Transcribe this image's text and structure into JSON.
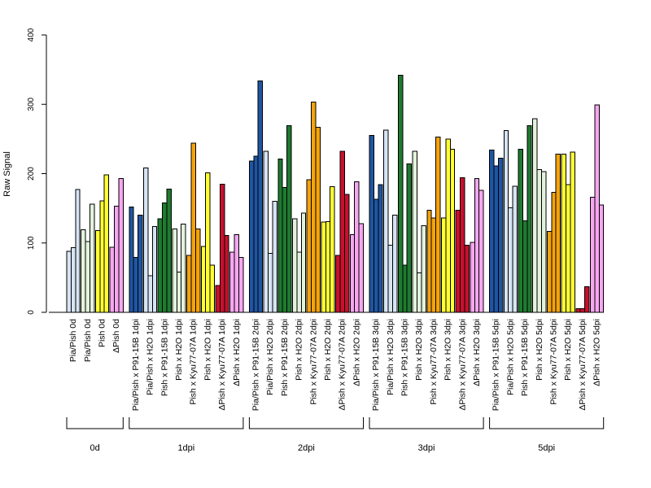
{
  "chart_data": {
    "type": "bar",
    "title": "",
    "xlabel": "",
    "ylabel": "Raw Signal",
    "ylim": [
      0,
      400
    ],
    "yticks": [
      0,
      100,
      200,
      300,
      400
    ],
    "grid": false,
    "legend": "none",
    "colors": {
      "Pia/Pish": "#d6e4f3",
      "Pia/Pish x P91-15B": "#1f56a3",
      "Pia/Pish x H2O": "#d6e4f3",
      "Pish": "#e3f2dc",
      "Pish x P91-15B": "#1e7b2f",
      "Pish x H2O": "#e3f2dc",
      "Pish-yellow": "#ffff33",
      "Pish x Kyu77-07A": "#f5a30c",
      "ΔPish": "#f7a6f0",
      "ΔPish x Kyu77-07A": "#c8102e",
      "ΔPish x H2O": "#f7a6f0"
    },
    "groups": [
      {
        "label": "0d",
        "categories": [
          {
            "label": "Pia/Pish 0d",
            "color": "#d6e4f3",
            "values": [
              88,
              93,
              177
            ]
          },
          {
            "label": "Pia/Pish 0d",
            "color": "#e3f2dc",
            "values": [
              119,
              102,
              156
            ]
          },
          {
            "label": "Pish 0d",
            "color": "#ffff33",
            "values": [
              118,
              161,
              198
            ]
          },
          {
            "label": "ΔPish 0d",
            "color": "#f7a6f0",
            "values": [
              94,
              153,
              193
            ]
          }
        ]
      },
      {
        "label": "1dpi",
        "categories": [
          {
            "label": "Pia/Pish x P91-15B 1dpi",
            "color": "#1f56a3",
            "values": [
              152,
              79,
              140
            ]
          },
          {
            "label": "Pia/Pish x H2O 1dpi",
            "color": "#d6e4f3",
            "values": [
              208,
              53,
              124
            ]
          },
          {
            "label": "Pish x P91-15B 1dpi",
            "color": "#1e7b2f",
            "values": [
              135,
              158,
              178
            ]
          },
          {
            "label": "Pish x H2O 1dpi",
            "color": "#e3f2dc",
            "values": [
              120,
              58,
              127
            ]
          },
          {
            "label": "Pish x Kyu77-07A 1dpi",
            "color": "#f5a30c",
            "values": [
              82,
              244,
              120
            ]
          },
          {
            "label": "Pish x H2O 1dpi",
            "color": "#ffff33",
            "values": [
              95,
              201,
              68
            ]
          },
          {
            "label": "ΔPish x Kyu77-07A 1dpi",
            "color": "#c8102e",
            "values": [
              39,
              185,
              111
            ]
          },
          {
            "label": "ΔPish x H2O 1dpi",
            "color": "#f7a6f0",
            "values": [
              87,
              112,
              79
            ]
          }
        ]
      },
      {
        "label": "2dpi",
        "categories": [
          {
            "label": "Pia/Pish x P91-15B 2dpi",
            "color": "#1f56a3",
            "values": [
              218,
              225,
              334
            ]
          },
          {
            "label": "Pia/Pish x H2O 2dpi",
            "color": "#d6e4f3",
            "values": [
              232,
              85,
              160
            ]
          },
          {
            "label": "Pish x P91-15B 2dpi",
            "color": "#1e7b2f",
            "values": [
              221,
              180,
              269
            ]
          },
          {
            "label": "Pish x H2O 2dpi",
            "color": "#e3f2dc",
            "values": [
              135,
              87,
              143
            ]
          },
          {
            "label": "Pish x Kyu77-07A 2dpi",
            "color": "#f5a30c",
            "values": [
              191,
              303,
              267
            ]
          },
          {
            "label": "Pish x H2O 2dpi",
            "color": "#ffff33",
            "values": [
              130,
              131,
              181
            ]
          },
          {
            "label": "ΔPish x Kyu77-07A 2dpi",
            "color": "#c8102e",
            "values": [
              82,
              232,
              170
            ]
          },
          {
            "label": "ΔPish x H2O 2dpi",
            "color": "#f7a6f0",
            "values": [
              112,
              188,
              128
            ]
          }
        ]
      },
      {
        "label": "3dpi",
        "categories": [
          {
            "label": "Pia/Pish x P91-15B 3dpi",
            "color": "#1f56a3",
            "values": [
              255,
              163,
              184
            ]
          },
          {
            "label": "Pia/Pish x H2O 3dpi",
            "color": "#d6e4f3",
            "values": [
              263,
              97,
              140
            ]
          },
          {
            "label": "Pish x P91-15B 3dpi",
            "color": "#1e7b2f",
            "values": [
              342,
              68,
              214
            ]
          },
          {
            "label": "Pish x H2O 3dpi",
            "color": "#e3f2dc",
            "values": [
              232,
              57,
              125
            ]
          },
          {
            "label": "Pish x Kyu77-07A 3dpi",
            "color": "#f5a30c",
            "values": [
              147,
              136,
              253
            ]
          },
          {
            "label": "Pish x H2O 3dpi",
            "color": "#ffff33",
            "values": [
              136,
              250,
              235
            ]
          },
          {
            "label": "ΔPish x Kyu77-07A 3dpi",
            "color": "#c8102e",
            "values": [
              147,
              194,
              97
            ]
          },
          {
            "label": "ΔPish x H2O 3dpi",
            "color": "#f7a6f0",
            "values": [
              101,
              193,
              176
            ]
          }
        ]
      },
      {
        "label": "5dpi",
        "categories": [
          {
            "label": "Pia/Pish x P91-15B 5dpi",
            "color": "#1f56a3",
            "values": [
              234,
              211,
              222
            ]
          },
          {
            "label": "Pia/Pish x H2O 5dpi",
            "color": "#d6e4f3",
            "values": [
              262,
              151,
              182
            ]
          },
          {
            "label": "Pish x P91-15B 5dpi",
            "color": "#1e7b2f",
            "values": [
              235,
              132,
              269
            ]
          },
          {
            "label": "Pish x H2O 5dpi",
            "color": "#e3f2dc",
            "values": [
              279,
              206,
              203
            ]
          },
          {
            "label": "Pish x Kyu77-07A 5dpi",
            "color": "#f5a30c",
            "values": [
              117,
              173,
              228
            ]
          },
          {
            "label": "Pish x H2O 5dpi",
            "color": "#ffff33",
            "values": [
              228,
              184,
              231
            ]
          },
          {
            "label": "ΔPish x Kyu77-07A 5dpi",
            "color": "#c8102e",
            "values": [
              5,
              5,
              37
            ]
          },
          {
            "label": "ΔPish x H2O 5dpi",
            "color": "#f7a6f0",
            "values": [
              166,
              299,
              155
            ]
          }
        ]
      }
    ]
  }
}
